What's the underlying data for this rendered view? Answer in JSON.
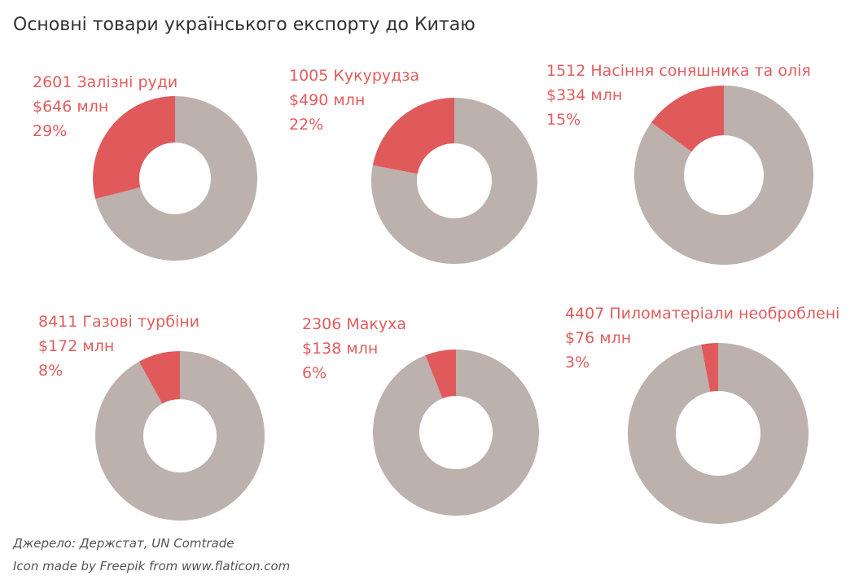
{
  "title": "Основні товари українського експорту до Китаю",
  "footer": {
    "source": "Джерело: Держстат, UN Comtrade",
    "credit": "Icon made by Freepik from www.flaticon.com"
  },
  "colors": {
    "highlight": "#e05a5c",
    "rest": "#bcb1ac",
    "label": "#e05d5d"
  },
  "chart_data": [
    {
      "type": "pie",
      "label": "2601 Залізні руди",
      "value_label": "$646 млн",
      "percent_label": "29%",
      "value": 646,
      "share": 29
    },
    {
      "type": "pie",
      "label": "1005 Кукурудза",
      "value_label": "$490 млн",
      "percent_label": "22%",
      "value": 490,
      "share": 22
    },
    {
      "type": "pie",
      "label": "1512 Насіння соняшника та олія",
      "value_label": "$334 млн",
      "percent_label": "15%",
      "value": 334,
      "share": 15
    },
    {
      "type": "pie",
      "label": "8411 Газові турбіни",
      "value_label": "$172 млн",
      "percent_label": "8%",
      "value": 172,
      "share": 8
    },
    {
      "type": "pie",
      "label": "2306 Макуха",
      "value_label": "$138 млн",
      "percent_label": "6%",
      "value": 138,
      "share": 6
    },
    {
      "type": "pie",
      "label": "4407 Пиломатеріали необроблені",
      "value_label": "$76 млн",
      "percent_label": "3%",
      "value": 76,
      "share": 3
    }
  ]
}
